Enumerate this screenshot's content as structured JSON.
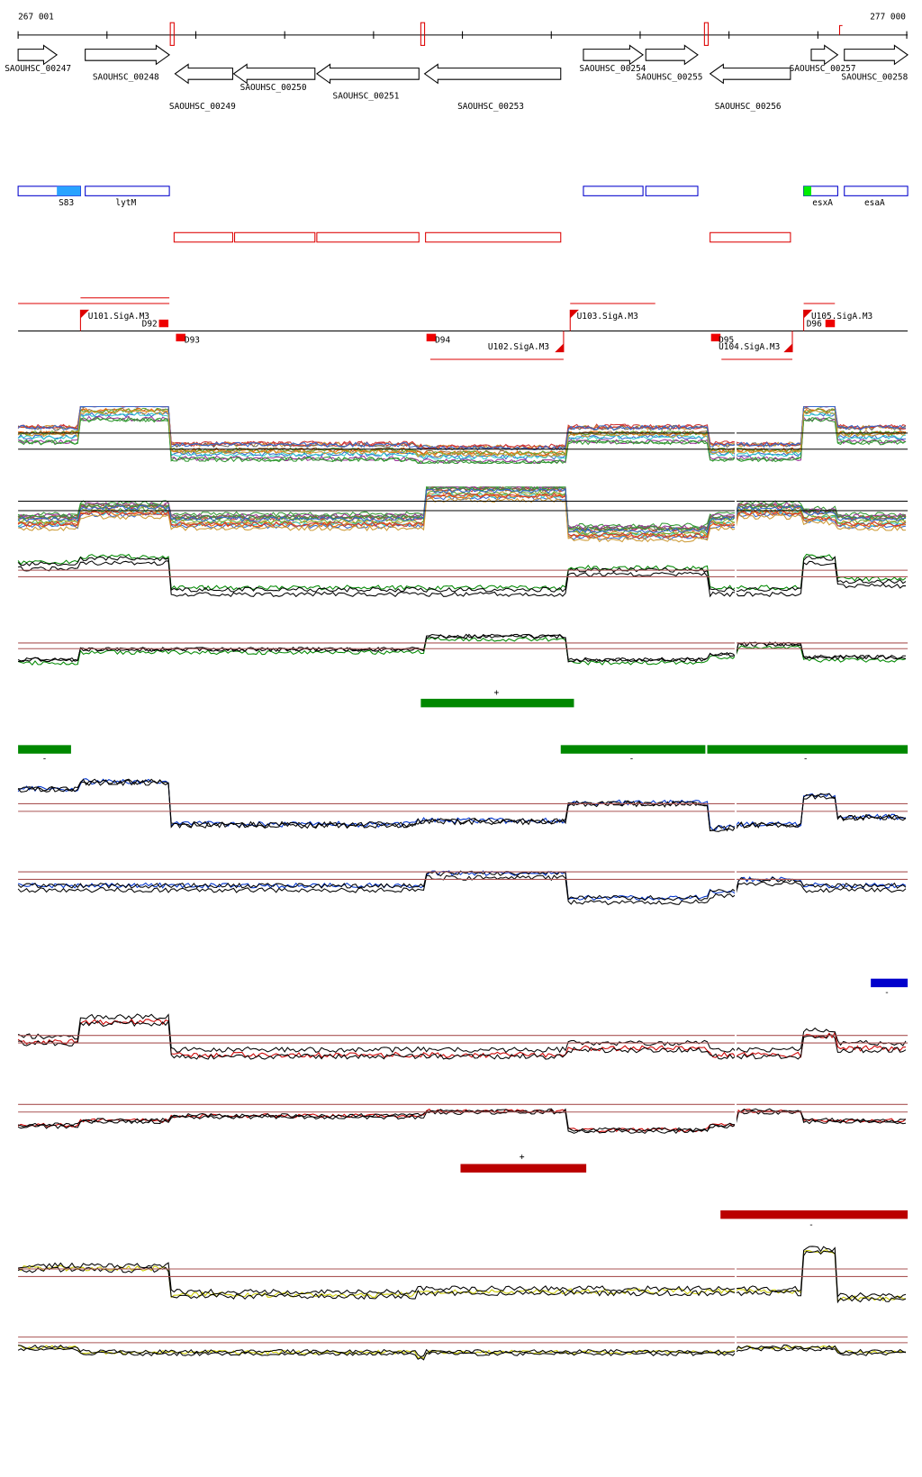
{
  "ruler": {
    "start": "267 001",
    "end": "277 000"
  },
  "genes": [
    "SAOUHSC_00247",
    "SAOUHSC_00248",
    "SAOUHSC_00254",
    "SAOUHSC_00255",
    "SAOUHSC_00257",
    "SAOUHSC_00258",
    "SAOUHSC_00249",
    "SAOUHSC_00250",
    "SAOUHSC_00251",
    "SAOUHSC_00253",
    "SAOUHSC_00256"
  ],
  "features": [
    "S83",
    "lytM",
    "esxA",
    "esaA"
  ],
  "promoters": [
    "U101.SigA.M3",
    "D92",
    "D93",
    "D94",
    "U102.SigA.M3",
    "U103.SigA.M3",
    "D95",
    "U104.SigA.M3",
    "D96",
    "U105.SigA.M3"
  ],
  "strands": [
    "+",
    "-",
    "-",
    "-",
    "-",
    "+",
    "-"
  ]
}
